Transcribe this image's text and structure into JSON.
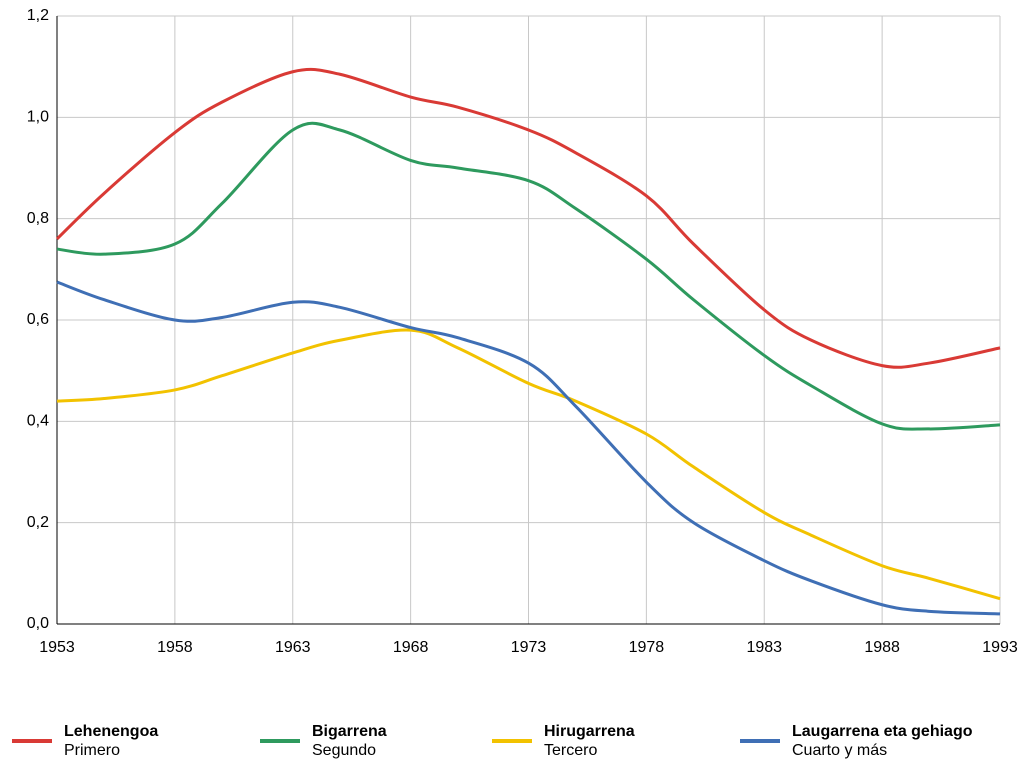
{
  "chart_data": {
    "type": "line",
    "x": [
      1953,
      1955,
      1958,
      1960,
      1963,
      1965,
      1968,
      1970,
      1973,
      1975,
      1978,
      1980,
      1983,
      1985,
      1988,
      1990,
      1993
    ],
    "series": [
      {
        "name": "Lehenengoa",
        "translation": "Primero",
        "color": "#d93a35",
        "values": [
          0.76,
          0.85,
          0.97,
          1.03,
          1.09,
          1.085,
          1.04,
          1.02,
          0.975,
          0.93,
          0.845,
          0.75,
          0.62,
          0.56,
          0.51,
          0.515,
          0.545
        ]
      },
      {
        "name": "Bigarrena",
        "translation": "Segundo",
        "color": "#2e9a5e",
        "values": [
          0.74,
          0.73,
          0.75,
          0.83,
          0.975,
          0.975,
          0.915,
          0.9,
          0.875,
          0.82,
          0.72,
          0.64,
          0.53,
          0.47,
          0.395,
          0.385,
          0.393
        ]
      },
      {
        "name": "Hirugarrena",
        "translation": "Tercero",
        "color": "#f2c200",
        "values": [
          0.44,
          0.445,
          0.462,
          0.49,
          0.535,
          0.56,
          0.58,
          0.545,
          0.475,
          0.44,
          0.375,
          0.31,
          0.22,
          0.175,
          0.115,
          0.09,
          0.05
        ]
      },
      {
        "name": "Laugarrena eta gehiago",
        "translation": "Cuarto y más",
        "color": "#3f6fb5",
        "values": [
          0.675,
          0.64,
          0.6,
          0.605,
          0.635,
          0.625,
          0.585,
          0.565,
          0.515,
          0.43,
          0.28,
          0.2,
          0.125,
          0.085,
          0.038,
          0.025,
          0.02
        ]
      }
    ],
    "xlim": [
      1953,
      1993
    ],
    "xticks": [
      1953,
      1958,
      1963,
      1968,
      1973,
      1978,
      1983,
      1988,
      1993
    ],
    "ylim": [
      0,
      1.2
    ],
    "yticks": [
      {
        "value": 0,
        "label": "0,0"
      },
      {
        "value": 0.2,
        "label": "0,2"
      },
      {
        "value": 0.4,
        "label": "0,4"
      },
      {
        "value": 0.6,
        "label": "0,6"
      },
      {
        "value": 0.8,
        "label": "0,8"
      },
      {
        "value": 1.0,
        "label": "1,0"
      },
      {
        "value": 1.2,
        "label": "1,2"
      }
    ],
    "grid": true,
    "legend": "bottom"
  }
}
